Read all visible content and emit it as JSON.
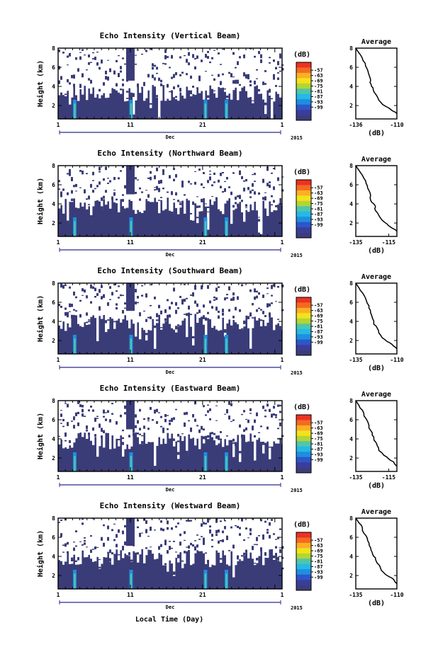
{
  "figure": {
    "x_axis_label": "Local Time (Day)",
    "y_axis_label": "Height (km)",
    "colorbar_unit": "(dB)",
    "avg_title": "Average",
    "avg_unit": "(dB)"
  },
  "colorbar": {
    "ticks": [
      "-57",
      "-63",
      "-69",
      "-75",
      "-81",
      "-87",
      "-93",
      "-99"
    ],
    "colors": [
      "#ee3122",
      "#f36b21",
      "#fbaf25",
      "#f2e31b",
      "#b5d433",
      "#4fc6ac",
      "#27b8e3",
      "#1d8fe0",
      "#2d56c8",
      "#3a3d9c",
      "#3b3d7a"
    ],
    "nan_color": "#ffffff",
    "field_color": "#3a3c78"
  },
  "chart_data": [
    {
      "type": "heatmap",
      "title": "Echo Intensity (Vertical Beam)",
      "xlabel": "Dec",
      "year": "2015",
      "x_ticks": [
        "1",
        "11",
        "21",
        "1"
      ],
      "xlim": [
        1,
        32
      ],
      "y_ticks": [
        "2",
        "4",
        "6",
        "8"
      ],
      "ylim": [
        0.6,
        8
      ],
      "data_top_km": 3.3,
      "columns_km": [
        [
          11,
          4.6
        ]
      ],
      "rain_events_day": [
        3.3,
        11.1,
        21.4,
        24.3
      ],
      "average_profile": {
        "type": "line",
        "title": "Average",
        "xlabel": "(dB)",
        "x_ticks": [
          "-136",
          "-110"
        ],
        "y_ticks": [
          "2",
          "4",
          "6",
          "8"
        ],
        "xlim": [
          -136,
          -110
        ],
        "ylim": [
          0.6,
          8
        ],
        "x": [
          -136,
          -134,
          -132,
          -130,
          -129,
          -128,
          -127,
          -127,
          -126,
          -125,
          -124,
          -122,
          -120,
          -117,
          -114,
          -111
        ],
        "y": [
          8.0,
          7.5,
          7.0,
          6.4,
          5.9,
          5.4,
          4.9,
          4.4,
          4.0,
          3.7,
          3.3,
          2.8,
          2.3,
          1.9,
          1.6,
          1.3
        ]
      }
    },
    {
      "type": "heatmap",
      "title": "Echo Intensity (Northward Beam)",
      "xlabel": "Dec",
      "year": "2015",
      "x_ticks": [
        "1",
        "11",
        "21",
        "1"
      ],
      "xlim": [
        1,
        32
      ],
      "y_ticks": [
        "2",
        "4",
        "6",
        "8"
      ],
      "ylim": [
        0.6,
        8
      ],
      "data_top_km": 3.8,
      "columns_km": [
        [
          11,
          5.0
        ]
      ],
      "rain_events_day": [
        3.3,
        11.1,
        21.4,
        24.3
      ],
      "average_profile": {
        "type": "line",
        "title": "Average",
        "xlabel": "(dB)",
        "x_ticks": [
          "-135",
          "-115"
        ],
        "y_ticks": [
          "2",
          "4",
          "6",
          "8"
        ],
        "xlim": [
          -135,
          -110
        ],
        "ylim": [
          0.6,
          8
        ],
        "x": [
          -135,
          -133,
          -131,
          -129,
          -128,
          -127,
          -126,
          -126,
          -124,
          -123,
          -123,
          -121,
          -119,
          -116,
          -114,
          -111
        ],
        "y": [
          8.0,
          7.5,
          7.0,
          6.4,
          5.9,
          5.4,
          4.9,
          4.4,
          4.0,
          3.7,
          3.3,
          2.8,
          2.3,
          1.9,
          1.6,
          1.3
        ]
      }
    },
    {
      "type": "heatmap",
      "title": "Echo Intensity (Southward Beam)",
      "xlabel": "Dec",
      "year": "2015",
      "x_ticks": [
        "1",
        "11",
        "21",
        "1"
      ],
      "xlim": [
        1,
        32
      ],
      "y_ticks": [
        "2",
        "4",
        "6",
        "8"
      ],
      "ylim": [
        0.6,
        8
      ],
      "data_top_km": 3.9,
      "columns_km": [
        [
          11,
          5.1
        ]
      ],
      "rain_events_day": [
        3.3,
        11.1,
        21.4,
        24.3
      ],
      "average_profile": {
        "type": "line",
        "title": "Average",
        "xlabel": "(dB)",
        "x_ticks": [
          "-135",
          "-110"
        ],
        "y_ticks": [
          "2",
          "4",
          "6",
          "8"
        ],
        "xlim": [
          -135,
          -110
        ],
        "ylim": [
          0.6,
          8
        ],
        "x": [
          -135,
          -133,
          -131,
          -129,
          -128,
          -127,
          -126,
          -125,
          -124,
          -124,
          -122,
          -121,
          -119,
          -116,
          -113,
          -111
        ],
        "y": [
          8.0,
          7.5,
          7.0,
          6.4,
          5.9,
          5.4,
          4.9,
          4.4,
          4.0,
          3.7,
          3.3,
          2.8,
          2.3,
          1.9,
          1.6,
          1.3
        ]
      }
    },
    {
      "type": "heatmap",
      "title": "Echo Intensity (Eastward Beam)",
      "xlabel": "Dec",
      "year": "2015",
      "x_ticks": [
        "1",
        "11",
        "21",
        "1"
      ],
      "xlim": [
        1,
        32
      ],
      "y_ticks": [
        "2",
        "4",
        "6",
        "8"
      ],
      "ylim": [
        0.6,
        8
      ],
      "data_top_km": 3.8,
      "columns_km": [
        [
          11,
          5.0
        ]
      ],
      "rain_events_day": [
        3.3,
        11.1,
        21.4,
        24.3
      ],
      "average_profile": {
        "type": "line",
        "title": "Average",
        "xlabel": "(dB)",
        "x_ticks": [
          "-135",
          "-115"
        ],
        "y_ticks": [
          "2",
          "4",
          "6",
          "8"
        ],
        "xlim": [
          -135,
          -110
        ],
        "ylim": [
          0.6,
          8
        ],
        "x": [
          -135,
          -133,
          -131,
          -130,
          -128,
          -127,
          -126,
          -125,
          -124,
          -123,
          -122,
          -121,
          -118,
          -115,
          -112,
          -111
        ],
        "y": [
          8.0,
          7.5,
          7.0,
          6.4,
          5.9,
          5.4,
          4.9,
          4.4,
          4.0,
          3.7,
          3.3,
          2.8,
          2.3,
          1.9,
          1.6,
          1.3
        ]
      }
    },
    {
      "type": "heatmap",
      "title": "Echo Intensity (Westward Beam)",
      "xlabel": "Dec",
      "year": "2015",
      "x_ticks": [
        "1",
        "11",
        "21",
        "1"
      ],
      "xlim": [
        1,
        32
      ],
      "y_ticks": [
        "2",
        "4",
        "6",
        "8"
      ],
      "ylim": [
        0.6,
        8
      ],
      "data_top_km": 3.9,
      "columns_km": [
        [
          11,
          5.1
        ]
      ],
      "rain_events_day": [
        3.3,
        11.1,
        21.4,
        24.3
      ],
      "average_profile": {
        "type": "line",
        "title": "Average",
        "xlabel": "(dB)",
        "x_ticks": [
          "-135",
          "-110"
        ],
        "y_ticks": [
          "2",
          "4",
          "6",
          "8"
        ],
        "xlim": [
          -135,
          -110
        ],
        "ylim": [
          0.6,
          8
        ],
        "x": [
          -135,
          -133,
          -131,
          -130,
          -128,
          -127,
          -126,
          -125,
          -124,
          -123,
          -122,
          -120,
          -118,
          -115,
          -112,
          -111
        ],
        "y": [
          8.0,
          7.5,
          7.0,
          6.4,
          5.9,
          5.4,
          4.9,
          4.4,
          4.0,
          3.7,
          3.3,
          2.8,
          2.3,
          1.9,
          1.6,
          1.3
        ]
      }
    }
  ]
}
